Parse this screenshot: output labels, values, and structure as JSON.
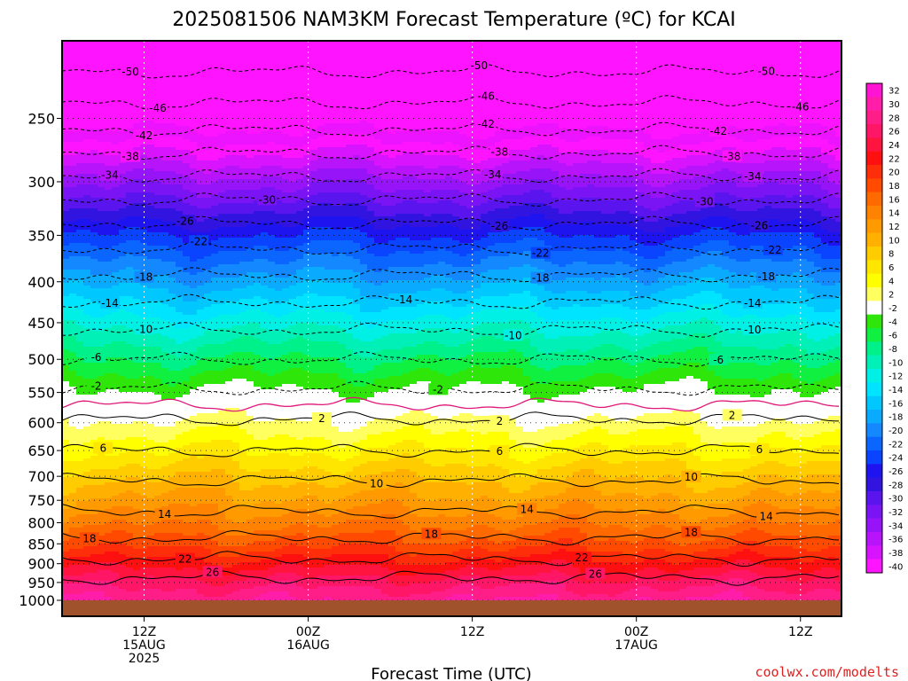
{
  "chart_data": {
    "type": "heatmap",
    "title": "2025081506 NAM3KM Forecast Temperature (ºC) for KCAI",
    "xlabel": "Forecast Time (UTC)",
    "watermark": "coolwx.com/modelts",
    "y_axis": {
      "scale": "log-pressure",
      "unit": "hPa",
      "ylim": [
        1000,
        200
      ],
      "ticks": [
        250,
        300,
        350,
        400,
        450,
        500,
        550,
        600,
        650,
        700,
        750,
        800,
        850,
        900,
        950,
        1000
      ],
      "tick_labels": [
        "250",
        "300",
        "350",
        "400",
        "450",
        "500",
        "550",
        "600",
        "650",
        "700",
        "750",
        "800",
        "850",
        "900",
        "950",
        "1000"
      ]
    },
    "x_axis": {
      "start_hour": 6,
      "end_hour": 63,
      "ticks": [
        {
          "hour": 12,
          "lines": [
            "12Z",
            "15AUG",
            "2025"
          ]
        },
        {
          "hour": 24,
          "lines": [
            "00Z",
            "16AUG"
          ]
        },
        {
          "hour": 36,
          "lines": [
            "12Z"
          ]
        },
        {
          "hour": 48,
          "lines": [
            "00Z",
            "17AUG"
          ]
        },
        {
          "hour": 60,
          "lines": [
            "12Z"
          ]
        }
      ]
    },
    "grid": true,
    "colorbar": {
      "labels": [
        "32",
        "30",
        "28",
        "26",
        "24",
        "22",
        "20",
        "18",
        "16",
        "14",
        "12",
        "10",
        "8",
        "6",
        "4",
        "2",
        "-2",
        "-4",
        "-6",
        "-8",
        "-10",
        "-12",
        "-14",
        "-16",
        "-18",
        "-20",
        "-22",
        "-24",
        "-26",
        "-28",
        "-30",
        "-32",
        "-34",
        "-36",
        "-38",
        "-40"
      ],
      "stops": [
        {
          "t": 32,
          "color": "#ff14d4"
        },
        {
          "t": 30,
          "color": "#ff1da9"
        },
        {
          "t": 28,
          "color": "#ff1e88"
        },
        {
          "t": 26,
          "color": "#ff1666"
        },
        {
          "t": 24,
          "color": "#ff1440"
        },
        {
          "t": 22,
          "color": "#ff1010"
        },
        {
          "t": 20,
          "color": "#ff2e0a"
        },
        {
          "t": 18,
          "color": "#ff4a00"
        },
        {
          "t": 16,
          "color": "#ff6a00"
        },
        {
          "t": 14,
          "color": "#ff8200"
        },
        {
          "t": 12,
          "color": "#ff9a00"
        },
        {
          "t": 10,
          "color": "#ffb000"
        },
        {
          "t": 8,
          "color": "#ffcc00"
        },
        {
          "t": 6,
          "color": "#ffe600"
        },
        {
          "t": 4,
          "color": "#ffff00"
        },
        {
          "t": 2,
          "color": "#ffff60"
        },
        {
          "t": 0,
          "color": "#ffffff"
        },
        {
          "t": -2,
          "color": "#ffffff"
        },
        {
          "t": -4,
          "color": "#2ee60a"
        },
        {
          "t": -6,
          "color": "#10f040"
        },
        {
          "t": -8,
          "color": "#00f08a"
        },
        {
          "t": -10,
          "color": "#00f0b8"
        },
        {
          "t": -12,
          "color": "#00f0e6"
        },
        {
          "t": -14,
          "color": "#00e4ff"
        },
        {
          "t": -16,
          "color": "#00c8ff"
        },
        {
          "t": -18,
          "color": "#0aaaff"
        },
        {
          "t": -20,
          "color": "#1488ff"
        },
        {
          "t": -22,
          "color": "#0a66ff"
        },
        {
          "t": -24,
          "color": "#0a44ff"
        },
        {
          "t": -26,
          "color": "#1e14f0"
        },
        {
          "t": -28,
          "color": "#3214e0"
        },
        {
          "t": -30,
          "color": "#5a14ee"
        },
        {
          "t": -32,
          "color": "#7a14f4"
        },
        {
          "t": -34,
          "color": "#9814f8"
        },
        {
          "t": -36,
          "color": "#b814fc"
        },
        {
          "t": -38,
          "color": "#d814fe"
        },
        {
          "t": -40,
          "color": "#ff14ff"
        }
      ]
    },
    "profile": [
      {
        "p": 1000,
        "t": 30
      },
      {
        "p": 950,
        "t": 27
      },
      {
        "p": 900,
        "t": 23
      },
      {
        "p": 850,
        "t": 19
      },
      {
        "p": 800,
        "t": 15.5
      },
      {
        "p": 750,
        "t": 12.5
      },
      {
        "p": 700,
        "t": 9.5
      },
      {
        "p": 650,
        "t": 6
      },
      {
        "p": 600,
        "t": 2.5
      },
      {
        "p": 570,
        "t": 0
      },
      {
        "p": 550,
        "t": -1.5
      },
      {
        "p": 500,
        "t": -6
      },
      {
        "p": 450,
        "t": -11
      },
      {
        "p": 400,
        "t": -17
      },
      {
        "p": 350,
        "t": -24
      },
      {
        "p": 300,
        "t": -33
      },
      {
        "p": 250,
        "t": -44
      },
      {
        "p": 200,
        "t": -54
      }
    ],
    "contours": [
      {
        "t": -50,
        "style": "dashed",
        "label_hours": [
          11,
          36.5,
          57.5
        ]
      },
      {
        "t": -46,
        "style": "dashed",
        "label_hours": [
          13,
          37,
          60
        ]
      },
      {
        "t": -42,
        "style": "dashed",
        "label_hours": [
          12,
          37,
          54
        ]
      },
      {
        "t": -38,
        "style": "dashed",
        "label_hours": [
          11,
          38,
          55
        ]
      },
      {
        "t": -34,
        "style": "dashed",
        "label_hours": [
          9.5,
          37.5,
          56.5
        ]
      },
      {
        "t": -30,
        "style": "dashed",
        "label_hours": [
          21,
          53
        ]
      },
      {
        "t": -26,
        "style": "dashed",
        "label_hours": [
          15,
          38,
          57
        ]
      },
      {
        "t": -22,
        "style": "dashed",
        "label_hours": [
          16,
          41,
          58
        ]
      },
      {
        "t": -18,
        "style": "dashed",
        "label_hours": [
          12,
          41,
          57.5
        ]
      },
      {
        "t": -14,
        "style": "dashed",
        "label_hours": [
          9.5,
          31,
          56.5
        ]
      },
      {
        "t": -10,
        "style": "dashed",
        "label_hours": [
          12,
          39,
          56.5
        ]
      },
      {
        "t": -6,
        "style": "dashed",
        "label_hours": [
          8.5,
          54
        ]
      },
      {
        "t": -2,
        "style": "dashed",
        "label_hours": [
          8.5,
          33.5
        ]
      },
      {
        "t": 0,
        "style": "freezing"
      },
      {
        "t": 2,
        "style": "solid",
        "label_hours": [
          25,
          38,
          55
        ]
      },
      {
        "t": 6,
        "style": "solid",
        "label_hours": [
          9,
          38,
          57
        ]
      },
      {
        "t": 10,
        "style": "solid",
        "label_hours": [
          3.5,
          29,
          52
        ]
      },
      {
        "t": 14,
        "style": "solid",
        "label_hours": [
          13.5,
          40,
          57.5
        ]
      },
      {
        "t": 18,
        "style": "solid",
        "label_hours": [
          8,
          33,
          52
        ]
      },
      {
        "t": 22,
        "style": "solid",
        "label_hours": [
          15,
          44
        ]
      },
      {
        "t": 26,
        "style": "solid",
        "label_hours": [
          17,
          45
        ]
      }
    ]
  }
}
